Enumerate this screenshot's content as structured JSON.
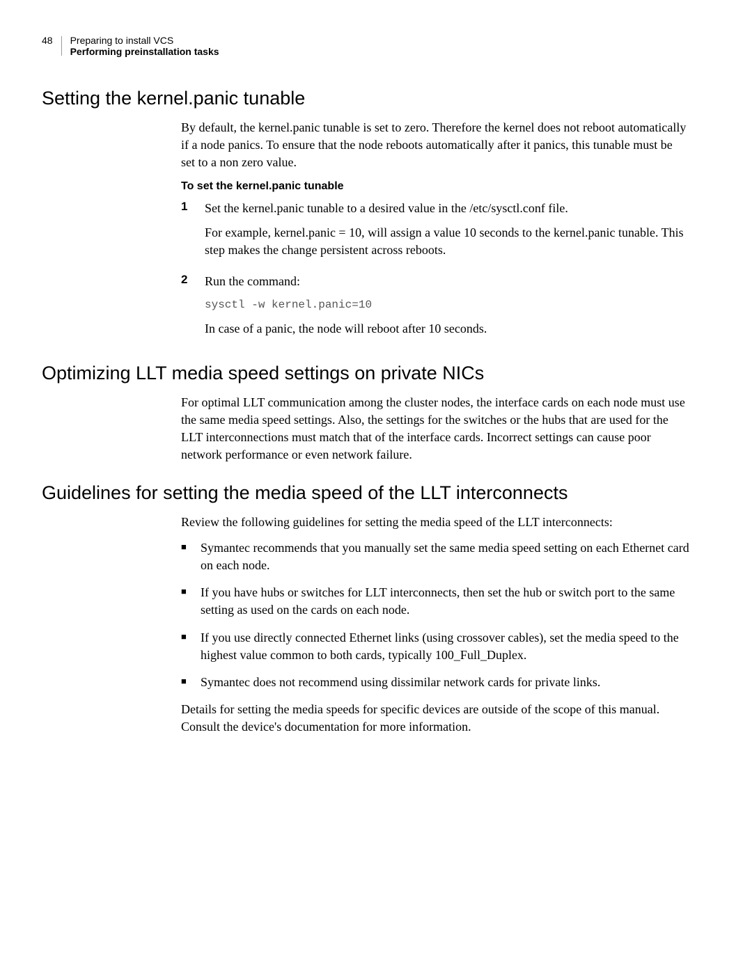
{
  "header": {
    "page_number": "48",
    "line1": "Preparing to install VCS",
    "line2": "Performing preinstallation tasks"
  },
  "section1": {
    "heading": "Setting the kernel.panic tunable",
    "para1": "By default, the kernel.panic tunable is set to zero. Therefore the kernel does not reboot automatically if a node panics. To ensure that the node reboots automatically after it panics, this tunable must be set to a non zero value.",
    "sub_heading": "To set the kernel.panic tunable",
    "step1_num": "1",
    "step1_text": "Set the kernel.panic tunable to a desired value in the /etc/sysctl.conf file.",
    "step1_detail": "For example, kernel.panic = 10, will assign a value 10 seconds to the kernel.panic tunable. This step makes the change persistent across reboots.",
    "step2_num": "2",
    "step2_text": "Run the command:",
    "step2_code": "sysctl -w kernel.panic=10",
    "step2_after": "In case of a panic, the node will reboot after 10 seconds."
  },
  "section2": {
    "heading": "Optimizing LLT media speed settings on private NICs",
    "para1": "For optimal LLT communication among the cluster nodes, the interface cards on each node must use the same media speed settings. Also, the settings for the switches or the hubs that are used for the LLT interconnections must match that of the interface cards. Incorrect settings can cause poor network performance or even network failure."
  },
  "section3": {
    "heading": "Guidelines for setting the media speed of the LLT interconnects",
    "para1": "Review the following guidelines for setting the media speed of the LLT interconnects:",
    "bullets": [
      "Symantec recommends that you manually set the same media speed setting on each Ethernet card on each node.",
      "If you have hubs or switches for LLT interconnects, then set the hub or switch port to the same setting as used on the cards on each node.",
      "If you use directly connected Ethernet links (using crossover cables), set the media speed to the highest value common to both cards, typically 100_Full_Duplex.",
      "Symantec does not recommend using dissimilar network cards for private links."
    ],
    "para2": "Details for setting the media speeds for specific devices are outside of the scope of this manual. Consult the device's documentation for more information."
  }
}
